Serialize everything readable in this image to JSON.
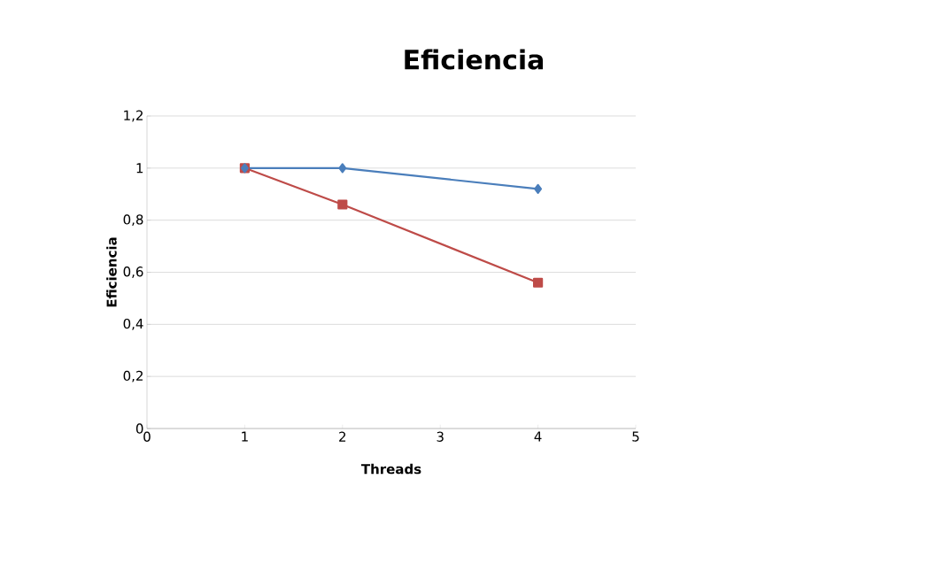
{
  "chart_data": {
    "type": "line",
    "title": "Eficiencia",
    "xlabel": "Threads",
    "ylabel": "Eficiencia",
    "x": [
      1,
      2,
      4
    ],
    "series": [
      {
        "color": "#4a7ebb",
        "values": [
          1,
          1,
          0.92
        ],
        "marker": "diamond"
      },
      {
        "color": "#be4b48",
        "values": [
          1,
          0.86,
          0.56
        ],
        "marker": "square"
      }
    ],
    "xlim": [
      0,
      5
    ],
    "xticks": [
      0,
      1,
      2,
      3,
      4,
      5
    ],
    "ylim": [
      0,
      1.2
    ],
    "yticks": [
      0,
      {
        "value": 0.2,
        "label": "0,2"
      },
      {
        "value": 0.4,
        "label": "0,4"
      },
      {
        "value": 0.6,
        "label": "0,6"
      },
      {
        "value": 0.8,
        "label": "0,8"
      },
      1,
      {
        "value": 1.2,
        "label": "1,2"
      }
    ],
    "grid": "y",
    "line_style": "solid"
  }
}
